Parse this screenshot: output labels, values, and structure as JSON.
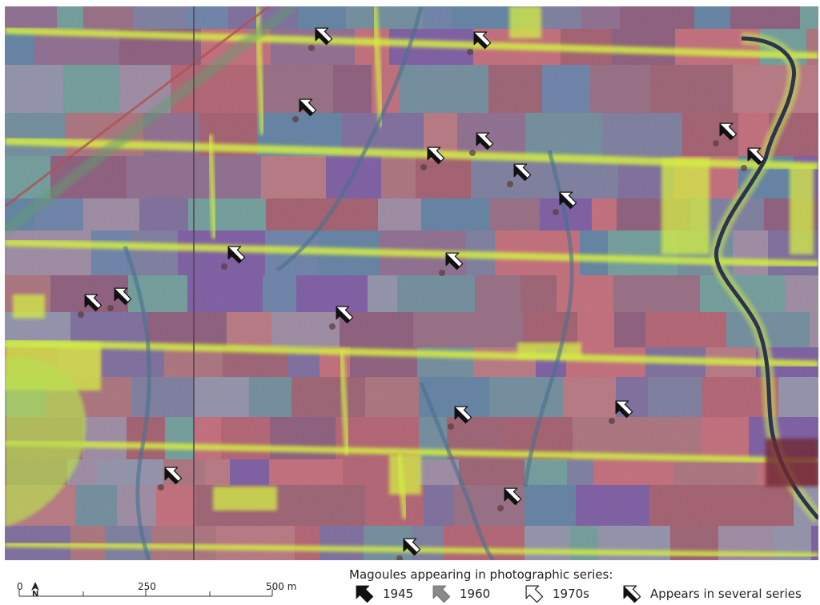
{
  "map": {
    "image": "false-colour aerial photograph composite of agricultural field parcels",
    "markers": [
      {
        "series": "1970s",
        "angle": 45
      },
      {
        "series": "1945",
        "angle": 45
      },
      {
        "series": "1945",
        "angle": 45
      },
      {
        "series": "several",
        "angle": 45
      },
      {
        "series": "1960",
        "angle": 45
      },
      {
        "series": "1945",
        "angle": 45
      },
      {
        "series": "several",
        "angle": 45
      },
      {
        "series": "1960",
        "angle": 45
      },
      {
        "series": "1970s",
        "angle": 45
      },
      {
        "series": "1970s",
        "angle": 45
      },
      {
        "series": "1945",
        "angle": 45
      },
      {
        "series": "1945",
        "angle": 45
      },
      {
        "series": "1945",
        "angle": 45
      },
      {
        "series": "1945",
        "angle": 45
      },
      {
        "series": "1945",
        "angle": 45
      },
      {
        "series": "several",
        "angle": 45
      },
      {
        "series": "1945",
        "angle": 45
      },
      {
        "series": "several",
        "angle": 45
      },
      {
        "series": "several",
        "angle": 45
      }
    ]
  },
  "scale_bar": {
    "labels": [
      "0",
      "250",
      "500 m"
    ],
    "north_label": "N"
  },
  "legend": {
    "title": "Magoules appearing in photographic series:",
    "items": [
      {
        "label": "1945",
        "style": "black"
      },
      {
        "label": "1960",
        "style": "grey"
      },
      {
        "label": "1970s",
        "style": "white"
      },
      {
        "label": "Appears in several series",
        "style": "split"
      }
    ]
  }
}
